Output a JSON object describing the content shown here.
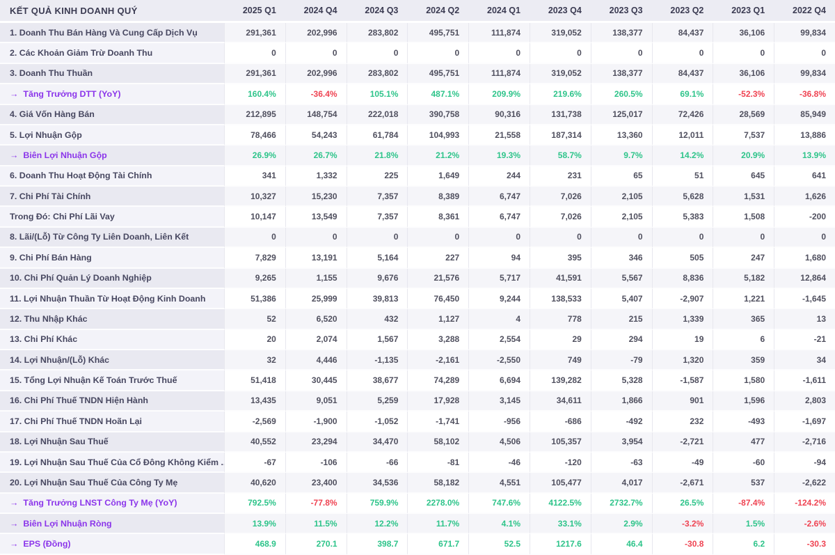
{
  "table": {
    "title": "KẾT QUẢ KINH DOANH QUÝ",
    "columns": [
      "2025 Q1",
      "2024 Q4",
      "2024 Q3",
      "2024 Q2",
      "2024 Q1",
      "2023 Q4",
      "2023 Q3",
      "2023 Q2",
      "2023 Q1",
      "2022 Q4"
    ],
    "rows": [
      {
        "label": "1. Doanh Thu Bán Hàng Và Cung Cấp Dịch Vụ",
        "metric": false,
        "values": [
          "291,361",
          "202,996",
          "283,802",
          "495,751",
          "111,874",
          "319,052",
          "138,377",
          "84,437",
          "36,106",
          "99,834"
        ]
      },
      {
        "label": "2. Các Khoản Giảm Trừ Doanh Thu",
        "metric": false,
        "values": [
          "0",
          "0",
          "0",
          "0",
          "0",
          "0",
          "0",
          "0",
          "0",
          "0"
        ]
      },
      {
        "label": "3. Doanh Thu Thuần",
        "metric": false,
        "values": [
          "291,361",
          "202,996",
          "283,802",
          "495,751",
          "111,874",
          "319,052",
          "138,377",
          "84,437",
          "36,106",
          "99,834"
        ]
      },
      {
        "label": "Tăng Trưởng DTT (YoY)",
        "metric": true,
        "values": [
          "160.4%",
          "-36.4%",
          "105.1%",
          "487.1%",
          "209.9%",
          "219.6%",
          "260.5%",
          "69.1%",
          "-52.3%",
          "-36.8%"
        ]
      },
      {
        "label": "4. Giá Vốn Hàng Bán",
        "metric": false,
        "values": [
          "212,895",
          "148,754",
          "222,018",
          "390,758",
          "90,316",
          "131,738",
          "125,017",
          "72,426",
          "28,569",
          "85,949"
        ]
      },
      {
        "label": "5. Lợi Nhuận Gộp",
        "metric": false,
        "values": [
          "78,466",
          "54,243",
          "61,784",
          "104,993",
          "21,558",
          "187,314",
          "13,360",
          "12,011",
          "7,537",
          "13,886"
        ]
      },
      {
        "label": "Biên Lợi Nhuận Gộp",
        "metric": true,
        "values": [
          "26.9%",
          "26.7%",
          "21.8%",
          "21.2%",
          "19.3%",
          "58.7%",
          "9.7%",
          "14.2%",
          "20.9%",
          "13.9%"
        ]
      },
      {
        "label": "6. Doanh Thu Hoạt Động Tài Chính",
        "metric": false,
        "values": [
          "341",
          "1,332",
          "225",
          "1,649",
          "244",
          "231",
          "65",
          "51",
          "645",
          "641"
        ]
      },
      {
        "label": "7. Chi Phí Tài Chính",
        "metric": false,
        "values": [
          "10,327",
          "15,230",
          "7,357",
          "8,389",
          "6,747",
          "7,026",
          "2,105",
          "5,628",
          "1,531",
          "1,626"
        ]
      },
      {
        "label": "Trong Đó: Chi Phí Lãi Vay",
        "metric": false,
        "values": [
          "10,147",
          "13,549",
          "7,357",
          "8,361",
          "6,747",
          "7,026",
          "2,105",
          "5,383",
          "1,508",
          "-200"
        ]
      },
      {
        "label": "8. Lãi/(Lỗ) Từ Công Ty Liên Doanh, Liên Kết",
        "metric": false,
        "values": [
          "0",
          "0",
          "0",
          "0",
          "0",
          "0",
          "0",
          "0",
          "0",
          "0"
        ]
      },
      {
        "label": "9. Chi Phí Bán Hàng",
        "metric": false,
        "values": [
          "7,829",
          "13,191",
          "5,164",
          "227",
          "94",
          "395",
          "346",
          "505",
          "247",
          "1,680"
        ]
      },
      {
        "label": "10. Chi Phí Quản Lý Doanh Nghiệp",
        "metric": false,
        "values": [
          "9,265",
          "1,155",
          "9,676",
          "21,576",
          "5,717",
          "41,591",
          "5,567",
          "8,836",
          "5,182",
          "12,864"
        ]
      },
      {
        "label": "11. Lợi Nhuận Thuần Từ Hoạt Động Kinh Doanh",
        "metric": false,
        "values": [
          "51,386",
          "25,999",
          "39,813",
          "76,450",
          "9,244",
          "138,533",
          "5,407",
          "-2,907",
          "1,221",
          "-1,645"
        ]
      },
      {
        "label": "12. Thu Nhập Khác",
        "metric": false,
        "values": [
          "52",
          "6,520",
          "432",
          "1,127",
          "4",
          "778",
          "215",
          "1,339",
          "365",
          "13"
        ]
      },
      {
        "label": "13. Chi Phí Khác",
        "metric": false,
        "values": [
          "20",
          "2,074",
          "1,567",
          "3,288",
          "2,554",
          "29",
          "294",
          "19",
          "6",
          "-21"
        ]
      },
      {
        "label": "14. Lợi Nhuận/(Lỗ) Khác",
        "metric": false,
        "values": [
          "32",
          "4,446",
          "-1,135",
          "-2,161",
          "-2,550",
          "749",
          "-79",
          "1,320",
          "359",
          "34"
        ]
      },
      {
        "label": "15. Tổng Lợi Nhuận Kế Toán Trước Thuế",
        "metric": false,
        "values": [
          "51,418",
          "30,445",
          "38,677",
          "74,289",
          "6,694",
          "139,282",
          "5,328",
          "-1,587",
          "1,580",
          "-1,611"
        ]
      },
      {
        "label": "16. Chi Phí Thuế TNDN Hiện Hành",
        "metric": false,
        "values": [
          "13,435",
          "9,051",
          "5,259",
          "17,928",
          "3,145",
          "34,611",
          "1,866",
          "901",
          "1,596",
          "2,803"
        ]
      },
      {
        "label": "17. Chi Phí Thuế TNDN Hoãn Lại",
        "metric": false,
        "values": [
          "-2,569",
          "-1,900",
          "-1,052",
          "-1,741",
          "-956",
          "-686",
          "-492",
          "232",
          "-493",
          "-1,697"
        ]
      },
      {
        "label": "18. Lợi Nhuận Sau Thuế",
        "metric": false,
        "values": [
          "40,552",
          "23,294",
          "34,470",
          "58,102",
          "4,506",
          "105,357",
          "3,954",
          "-2,721",
          "477",
          "-2,716"
        ]
      },
      {
        "label": "19. Lợi Nhuận Sau Thuế Của Cổ Đông Không Kiểm ...",
        "metric": false,
        "values": [
          "-67",
          "-106",
          "-66",
          "-81",
          "-46",
          "-120",
          "-63",
          "-49",
          "-60",
          "-94"
        ]
      },
      {
        "label": "20. Lợi Nhuận Sau Thuế Của Công Ty Mẹ",
        "metric": false,
        "values": [
          "40,620",
          "23,400",
          "34,536",
          "58,182",
          "4,551",
          "105,477",
          "4,017",
          "-2,671",
          "537",
          "-2,622"
        ]
      },
      {
        "label": "Tăng Trưởng LNST Công Ty Mẹ (YoY)",
        "metric": true,
        "values": [
          "792.5%",
          "-77.8%",
          "759.9%",
          "2278.0%",
          "747.6%",
          "4122.5%",
          "2732.7%",
          "26.5%",
          "-87.4%",
          "-124.2%"
        ]
      },
      {
        "label": "Biên Lợi Nhuận Ròng",
        "metric": true,
        "values": [
          "13.9%",
          "11.5%",
          "12.2%",
          "11.7%",
          "4.1%",
          "33.1%",
          "2.9%",
          "-3.2%",
          "1.5%",
          "-2.6%"
        ]
      },
      {
        "label": "EPS (Đồng)",
        "metric": true,
        "values": [
          "468.9",
          "270.1",
          "398.7",
          "671.7",
          "52.5",
          "1217.6",
          "46.4",
          "-30.8",
          "6.2",
          "-30.3"
        ]
      }
    ]
  },
  "ui": {
    "arrow_icon": "→"
  },
  "colors": {
    "positive": "#2EC48A",
    "negative": "#EF4352",
    "metric_label": "#8B35EA",
    "header_bg": "#ECECF3"
  }
}
